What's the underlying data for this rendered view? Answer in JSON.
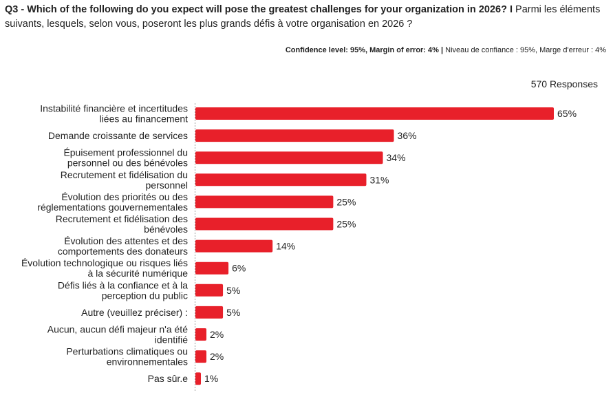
{
  "header": {
    "question_bold": "Q3 - Which of the following do you expect will pose the greatest challenges for your organization in 2026? I",
    "question_rest": " Parmi les éléments suivants, lesquels, selon vous, poseront les plus grands défis à votre organisation en 2026 ?",
    "confidence_bold": "Confidence level: 95%, Margin of error: 4% |",
    "confidence_rest": " Niveau de confiance : 95%, Marge d'erreur : 4%",
    "responses": "570 Responses"
  },
  "colors": {
    "bar": "#e8202a",
    "axis": "#999999"
  },
  "chart_data": {
    "type": "bar",
    "orientation": "horizontal",
    "unit": "%",
    "categories": [
      "Instabilité financière et incertitudes liées au financement",
      "Demande croissante de services",
      "Épuisement professionnel du personnel ou des bénévoles",
      "Recrutement et fidélisation du personnel",
      "Évolution des priorités ou des réglementations gouvernementales",
      "Recrutement et fidélisation des bénévoles",
      "Évolution des attentes et des comportements des donateurs",
      "Évolution technologique ou risques liés à la sécurité numérique",
      "Défis liés à la confiance et à la perception du public",
      "Autre (veuillez préciser) :",
      "Aucun, aucun défi majeur n'a été identifié",
      "Perturbations climatiques ou environnementales",
      "Pas sûr.e"
    ],
    "label_lines": [
      [
        "Instabilité financière et incertitudes",
        "liées au financement"
      ],
      [
        "Demande croissante de services"
      ],
      [
        "Épuisement professionnel du",
        "personnel ou des bénévoles"
      ],
      [
        "Recrutement et fidélisation du",
        "personnel"
      ],
      [
        "Évolution des priorités ou des",
        "réglementations gouvernementales"
      ],
      [
        "Recrutement et fidélisation des",
        "bénévoles"
      ],
      [
        "Évolution des attentes et des",
        "comportements des donateurs"
      ],
      [
        "Évolution technologique ou risques liés",
        "à la sécurité numérique"
      ],
      [
        "Défis liés à la confiance et à la",
        "perception du public"
      ],
      [
        "Autre (veuillez préciser) :"
      ],
      [
        "Aucun, aucun défi majeur n'a été",
        "identifié"
      ],
      [
        "Perturbations climatiques ou",
        "environnementales"
      ],
      [
        "Pas sûr.e"
      ]
    ],
    "values": [
      65,
      36,
      34,
      31,
      25,
      25,
      14,
      6,
      5,
      5,
      2,
      2,
      1
    ],
    "value_labels": [
      "65%",
      "36%",
      "34%",
      "31%",
      "25%",
      "25%",
      "14%",
      "6%",
      "5%",
      "5%",
      "2%",
      "2%",
      "1%"
    ],
    "xlim": [
      0,
      65
    ],
    "legend": "none",
    "grid": false
  }
}
